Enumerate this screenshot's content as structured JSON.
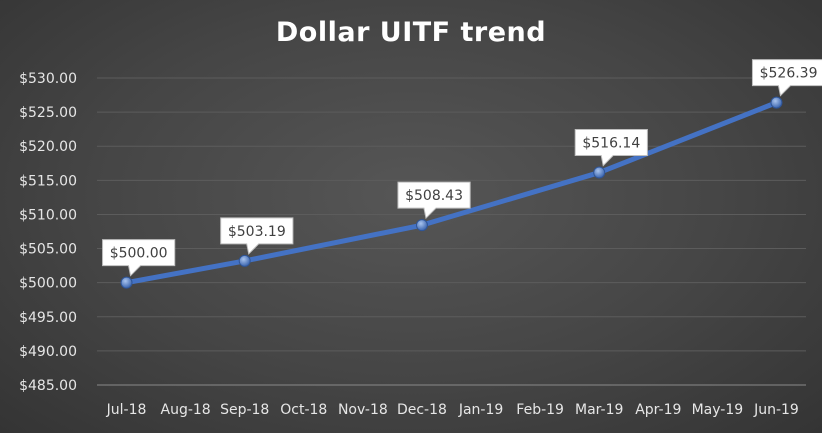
{
  "chart_data": {
    "type": "line",
    "title": "Dollar UITF trend",
    "xlabel": "",
    "ylabel": "",
    "categories": [
      "Jul-18",
      "Aug-18",
      "Sep-18",
      "Oct-18",
      "Nov-18",
      "Dec-18",
      "Jan-19",
      "Feb-19",
      "Mar-19",
      "Apr-19",
      "May-19",
      "Jun-19"
    ],
    "y_tick_labels": [
      "$530.00",
      "$525.00",
      "$520.00",
      "$515.00",
      "$510.00",
      "$505.00",
      "$500.00",
      "$495.00",
      "$490.00",
      "$485.00"
    ],
    "ylim": [
      485,
      530
    ],
    "y_step": 5,
    "grid": true,
    "series": [
      {
        "x": [
          "Jul-18",
          "Sep-18",
          "Dec-18",
          "Mar-19",
          "Jun-19"
        ],
        "values": [
          500.0,
          503.19,
          508.43,
          516.14,
          526.39
        ],
        "data_labels": [
          "$500.00",
          "$503.19",
          "$508.43",
          "$516.14",
          "$526.39"
        ],
        "color": "#4472c4"
      }
    ]
  }
}
